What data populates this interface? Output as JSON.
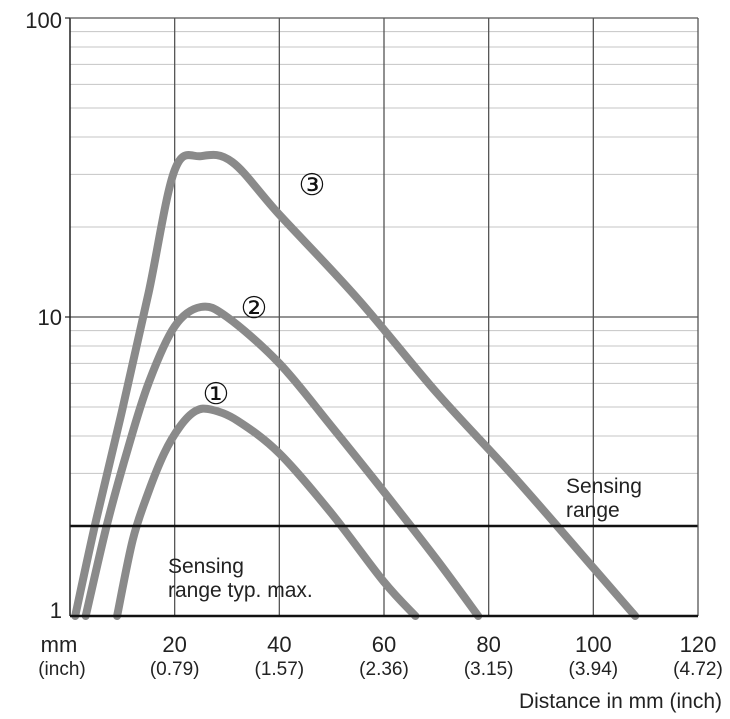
{
  "chart_data": {
    "type": "line",
    "title": "",
    "xlabel": "Distance in mm (inch)",
    "ylabel": "",
    "x_unit_label": "mm",
    "x_unit_label_inch": "(inch)",
    "xlim": [
      0,
      120
    ],
    "ylim": [
      1,
      100
    ],
    "y_scale": "log",
    "grid": true,
    "x_ticks": [
      20,
      40,
      60,
      80,
      100,
      120
    ],
    "x_tick_inch_labels": [
      "(0.79)",
      "(1.57)",
      "(2.36)",
      "(3.15)",
      "(3.94)",
      "(4.72)"
    ],
    "y_tick_labels": [
      "1",
      "10",
      "100"
    ],
    "reference_line": {
      "y": 2.0,
      "label": "Sensing range typ. max."
    },
    "annotations": [
      {
        "text": "Sensing\nrange"
      }
    ],
    "series": [
      {
        "name": "①",
        "color": "#8a8a8a",
        "x": [
          9,
          12,
          15,
          18,
          21,
          24,
          27,
          32,
          40,
          50,
          60,
          66
        ],
        "y": [
          1.0,
          1.8,
          2.6,
          3.5,
          4.3,
          4.85,
          4.9,
          4.5,
          3.5,
          2.2,
          1.3,
          1.0
        ]
      },
      {
        "name": "②",
        "color": "#8a8a8a",
        "x": [
          3,
          7,
          11,
          15,
          20,
          25,
          30,
          40,
          50,
          60,
          70,
          78
        ],
        "y": [
          1.0,
          2.0,
          3.6,
          6.0,
          9.3,
          10.8,
          10.0,
          7.0,
          4.3,
          2.6,
          1.55,
          1.0
        ]
      },
      {
        "name": "③",
        "color": "#8a8a8a",
        "x": [
          1,
          5,
          10,
          15,
          20,
          25,
          31,
          40,
          55,
          70,
          85,
          100,
          108
        ],
        "y": [
          1.0,
          2.1,
          4.9,
          12.0,
          31.0,
          34.5,
          33.0,
          22.0,
          11.5,
          5.6,
          2.9,
          1.45,
          1.0
        ]
      }
    ]
  }
}
